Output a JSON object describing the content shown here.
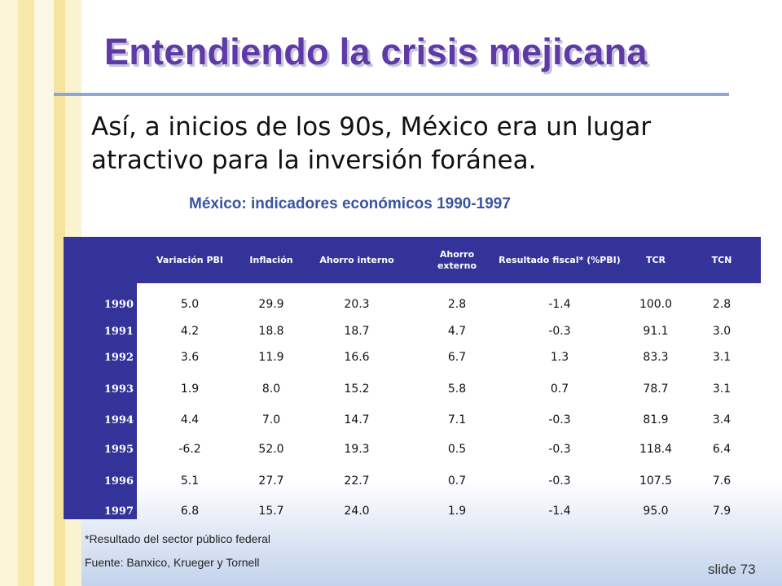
{
  "slide": {
    "title": "Entendiendo la crisis mejicana",
    "bullet_line1": "Así, a inicios de los 90s, México era un lugar",
    "bullet_line2": "atractivo para la inversión foránea.",
    "table_caption": "México: indicadores económicos 1990-1997",
    "footnote": "*Resultado del sector público federal",
    "source": "Fuente: Banxico, Krueger y Tornell",
    "slide_number": "slide 73"
  },
  "table": {
    "headers": [
      "Variación PBI",
      "Inflación",
      "Ahorro interno",
      "Ahorro externo",
      "Resultado fiscal* (%PBI)",
      "TCR",
      "TCN"
    ],
    "rows": [
      {
        "year": "1990",
        "values": [
          "5.0",
          "29.9",
          "20.3",
          "2.8",
          "-1.4",
          "100.0",
          "2.8"
        ]
      },
      {
        "year": "1991",
        "values": [
          "4.2",
          "18.8",
          "18.7",
          "4.7",
          "-0.3",
          "91.1",
          "3.0"
        ]
      },
      {
        "year": "1992",
        "values": [
          "3.6",
          "11.9",
          "16.6",
          "6.7",
          "1.3",
          "83.3",
          "3.1"
        ]
      },
      {
        "year": "1993",
        "values": [
          "1.9",
          "8.0",
          "15.2",
          "5.8",
          "0.7",
          "78.7",
          "3.1"
        ]
      },
      {
        "year": "1994",
        "values": [
          "4.4",
          "7.0",
          "14.7",
          "7.1",
          "-0.3",
          "81.9",
          "3.4"
        ]
      },
      {
        "year": "1995",
        "values": [
          "-6.2",
          "52.0",
          "19.3",
          "0.5",
          "-0.3",
          "118.4",
          "6.4"
        ]
      },
      {
        "year": "1996",
        "values": [
          "5.1",
          "27.7",
          "22.7",
          "0.7",
          "-0.3",
          "107.5",
          "7.6"
        ]
      },
      {
        "year": "1997",
        "values": [
          "6.8",
          "15.7",
          "24.0",
          "1.9",
          "-1.4",
          "95.0",
          "7.9"
        ]
      }
    ]
  },
  "colors": {
    "title": "#5e3aa6",
    "table_header": "#34339a",
    "caption": "#3a55a0",
    "stripe_a": "#f7e9ab",
    "stripe_b": "#fbf4d6"
  }
}
